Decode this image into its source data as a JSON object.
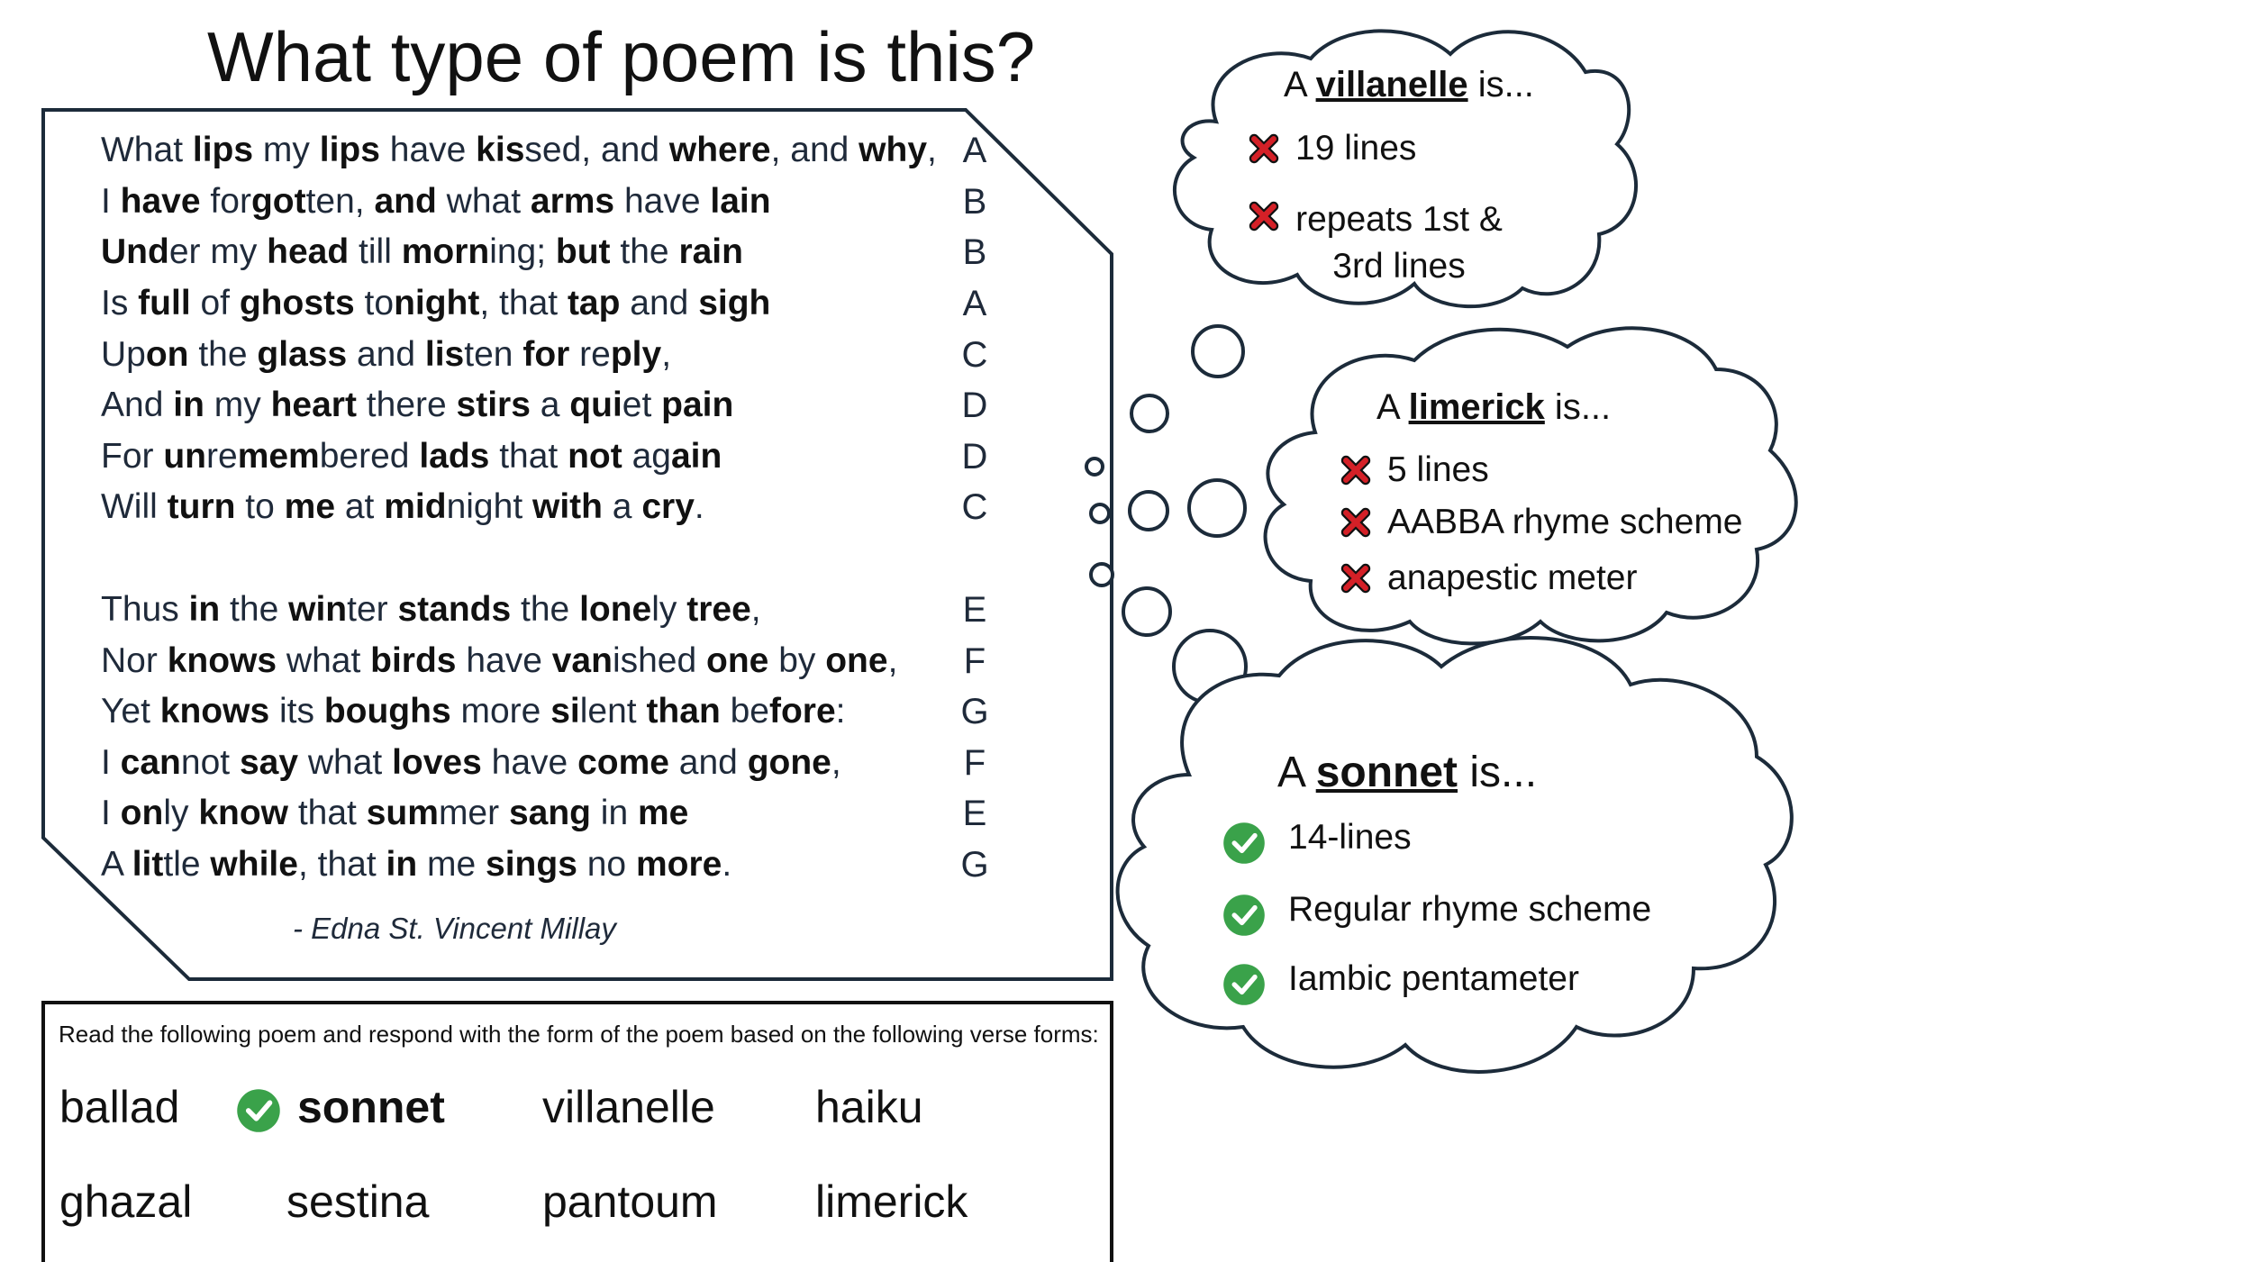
{
  "title": "What type of poem is this?",
  "poem": {
    "lines": [
      {
        "segments": [
          {
            "t": "What ",
            "b": false
          },
          {
            "t": "lips",
            "b": true
          },
          {
            "t": " my ",
            "b": false
          },
          {
            "t": "lips",
            "b": true
          },
          {
            "t": " have ",
            "b": false
          },
          {
            "t": "kis",
            "b": true
          },
          {
            "t": "sed, and ",
            "b": false
          },
          {
            "t": "where",
            "b": true
          },
          {
            "t": ", and ",
            "b": false
          },
          {
            "t": "why",
            "b": true
          },
          {
            "t": ",",
            "b": false
          }
        ],
        "rhyme": "A"
      },
      {
        "segments": [
          {
            "t": "I ",
            "b": false
          },
          {
            "t": "have",
            "b": true
          },
          {
            "t": " for",
            "b": false
          },
          {
            "t": "got",
            "b": true
          },
          {
            "t": "ten, ",
            "b": false
          },
          {
            "t": "and",
            "b": true
          },
          {
            "t": " what ",
            "b": false
          },
          {
            "t": "arms",
            "b": true
          },
          {
            "t": " have ",
            "b": false
          },
          {
            "t": "lain",
            "b": true
          }
        ],
        "rhyme": "B"
      },
      {
        "segments": [
          {
            "t": "Und",
            "b": true
          },
          {
            "t": "er my ",
            "b": false
          },
          {
            "t": "head",
            "b": true
          },
          {
            "t": " till ",
            "b": false
          },
          {
            "t": "morn",
            "b": true
          },
          {
            "t": "ing; ",
            "b": false
          },
          {
            "t": "but",
            "b": true
          },
          {
            "t": " the ",
            "b": false
          },
          {
            "t": "rain",
            "b": true
          }
        ],
        "rhyme": "B"
      },
      {
        "segments": [
          {
            "t": "Is ",
            "b": false
          },
          {
            "t": "full",
            "b": true
          },
          {
            "t": " of ",
            "b": false
          },
          {
            "t": "ghosts",
            "b": true
          },
          {
            "t": " to",
            "b": false
          },
          {
            "t": "night",
            "b": true
          },
          {
            "t": ", that ",
            "b": false
          },
          {
            "t": "tap",
            "b": true
          },
          {
            "t": " and ",
            "b": false
          },
          {
            "t": "sigh",
            "b": true
          }
        ],
        "rhyme": "A"
      },
      {
        "segments": [
          {
            "t": "Up",
            "b": false
          },
          {
            "t": "on",
            "b": true
          },
          {
            "t": " the ",
            "b": false
          },
          {
            "t": "glass",
            "b": true
          },
          {
            "t": " and ",
            "b": false
          },
          {
            "t": "lis",
            "b": true
          },
          {
            "t": "ten ",
            "b": false
          },
          {
            "t": "for",
            "b": true
          },
          {
            "t": " re",
            "b": false
          },
          {
            "t": "ply",
            "b": true
          },
          {
            "t": ",",
            "b": false
          }
        ],
        "rhyme": "C"
      },
      {
        "segments": [
          {
            "t": "And ",
            "b": false
          },
          {
            "t": "in",
            "b": true
          },
          {
            "t": " my ",
            "b": false
          },
          {
            "t": "heart",
            "b": true
          },
          {
            "t": " there ",
            "b": false
          },
          {
            "t": "stirs",
            "b": true
          },
          {
            "t": " a ",
            "b": false
          },
          {
            "t": "qui",
            "b": true
          },
          {
            "t": "et ",
            "b": false
          },
          {
            "t": "pain",
            "b": true
          }
        ],
        "rhyme": "D"
      },
      {
        "segments": [
          {
            "t": "For ",
            "b": false
          },
          {
            "t": "un",
            "b": true
          },
          {
            "t": "re",
            "b": false
          },
          {
            "t": "mem",
            "b": true
          },
          {
            "t": "bered ",
            "b": false
          },
          {
            "t": "lads",
            "b": true
          },
          {
            "t": " that ",
            "b": false
          },
          {
            "t": "not",
            "b": true
          },
          {
            "t": " ag",
            "b": false
          },
          {
            "t": "ain",
            "b": true
          }
        ],
        "rhyme": "D"
      },
      {
        "segments": [
          {
            "t": "Will ",
            "b": false
          },
          {
            "t": "turn",
            "b": true
          },
          {
            "t": " to ",
            "b": false
          },
          {
            "t": "me",
            "b": true
          },
          {
            "t": " at ",
            "b": false
          },
          {
            "t": "mid",
            "b": true
          },
          {
            "t": "night ",
            "b": false
          },
          {
            "t": "with",
            "b": true
          },
          {
            "t": " a ",
            "b": false
          },
          {
            "t": "cry",
            "b": true
          },
          {
            "t": ".",
            "b": false
          }
        ],
        "rhyme": "C"
      },
      {
        "segments": [
          {
            "t": "Thus ",
            "b": false
          },
          {
            "t": "in",
            "b": true
          },
          {
            "t": " the ",
            "b": false
          },
          {
            "t": "win",
            "b": true
          },
          {
            "t": "ter ",
            "b": false
          },
          {
            "t": "stands",
            "b": true
          },
          {
            "t": " the ",
            "b": false
          },
          {
            "t": "lone",
            "b": true
          },
          {
            "t": "ly ",
            "b": false
          },
          {
            "t": "tree",
            "b": true
          },
          {
            "t": ",",
            "b": false
          }
        ],
        "rhyme": "E"
      },
      {
        "segments": [
          {
            "t": "Nor ",
            "b": false
          },
          {
            "t": "knows",
            "b": true
          },
          {
            "t": " what ",
            "b": false
          },
          {
            "t": "birds",
            "b": true
          },
          {
            "t": " have ",
            "b": false
          },
          {
            "t": "van",
            "b": true
          },
          {
            "t": "ished ",
            "b": false
          },
          {
            "t": "one",
            "b": true
          },
          {
            "t": " by ",
            "b": false
          },
          {
            "t": "one",
            "b": true
          },
          {
            "t": ",",
            "b": false
          }
        ],
        "rhyme": "F"
      },
      {
        "segments": [
          {
            "t": "Yet ",
            "b": false
          },
          {
            "t": "knows",
            "b": true
          },
          {
            "t": " its ",
            "b": false
          },
          {
            "t": "boughs",
            "b": true
          },
          {
            "t": " more ",
            "b": false
          },
          {
            "t": "si",
            "b": true
          },
          {
            "t": "lent ",
            "b": false
          },
          {
            "t": "than",
            "b": true
          },
          {
            "t": " be",
            "b": false
          },
          {
            "t": "fore",
            "b": true
          },
          {
            "t": ":",
            "b": false
          }
        ],
        "rhyme": "G"
      },
      {
        "segments": [
          {
            "t": "I ",
            "b": false
          },
          {
            "t": "can",
            "b": true
          },
          {
            "t": "not ",
            "b": false
          },
          {
            "t": "say",
            "b": true
          },
          {
            "t": " what ",
            "b": false
          },
          {
            "t": "loves",
            "b": true
          },
          {
            "t": " have ",
            "b": false
          },
          {
            "t": "come",
            "b": true
          },
          {
            "t": " and ",
            "b": false
          },
          {
            "t": "gone",
            "b": true
          },
          {
            "t": ",",
            "b": false
          }
        ],
        "rhyme": "F"
      },
      {
        "segments": [
          {
            "t": "I ",
            "b": false
          },
          {
            "t": "on",
            "b": true
          },
          {
            "t": "ly ",
            "b": false
          },
          {
            "t": "know",
            "b": true
          },
          {
            "t": " that ",
            "b": false
          },
          {
            "t": "sum",
            "b": true
          },
          {
            "t": "mer ",
            "b": false
          },
          {
            "t": "sang",
            "b": true
          },
          {
            "t": " in ",
            "b": false
          },
          {
            "t": "me",
            "b": true
          }
        ],
        "rhyme": "E"
      },
      {
        "segments": [
          {
            "t": "A ",
            "b": false
          },
          {
            "t": "lit",
            "b": true
          },
          {
            "t": "tle ",
            "b": false
          },
          {
            "t": "while",
            "b": true
          },
          {
            "t": ", that ",
            "b": false
          },
          {
            "t": "in",
            "b": true
          },
          {
            "t": " me ",
            "b": false
          },
          {
            "t": "sings",
            "b": true
          },
          {
            "t": " no ",
            "b": false
          },
          {
            "t": "more",
            "b": true
          },
          {
            "t": ".",
            "b": false
          }
        ],
        "rhyme": "G"
      }
    ],
    "author": "- Edna St. Vincent Millay"
  },
  "instructions": "Read the following poem and respond with the form of the poem based on the following verse forms:",
  "forms": [
    {
      "label": "ballad",
      "selected": false
    },
    {
      "label": "sonnet",
      "selected": true
    },
    {
      "label": "villanelle",
      "selected": false
    },
    {
      "label": "haiku",
      "selected": false
    },
    {
      "label": "ghazal",
      "selected": false
    },
    {
      "label": "sestina",
      "selected": false
    },
    {
      "label": "pantoum",
      "selected": false
    },
    {
      "label": "limerick",
      "selected": false
    }
  ],
  "clouds": {
    "villanelle": {
      "prefix": "A ",
      "name": "villanelle",
      "suffix": " is...",
      "items": [
        {
          "text": "19 lines",
          "status": "x"
        },
        {
          "text": "repeats 1st & 3rd lines",
          "status": "x"
        }
      ]
    },
    "limerick": {
      "prefix": "A ",
      "name": "limerick",
      "suffix": " is...",
      "items": [
        {
          "text": "5 lines",
          "status": "x"
        },
        {
          "text": "AABBA rhyme scheme",
          "status": "x"
        },
        {
          "text": "anapestic meter",
          "status": "x"
        }
      ]
    },
    "sonnet": {
      "prefix": "A ",
      "name": "sonnet",
      "suffix": " is...",
      "items": [
        {
          "text": "14-lines",
          "status": "check"
        },
        {
          "text": "Regular rhyme scheme",
          "status": "check"
        },
        {
          "text": "Iambic pentameter",
          "status": "check"
        }
      ]
    }
  },
  "colors": {
    "frame": "#1c2b3a",
    "check": "#3aa24a",
    "x": "#d42027"
  }
}
